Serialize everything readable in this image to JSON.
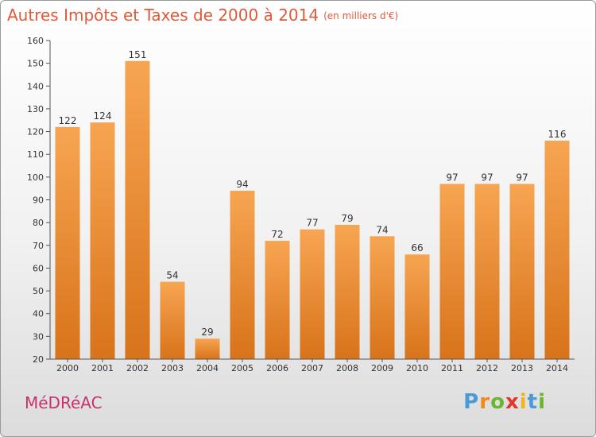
{
  "title": "Autres Impôts et Taxes de 2000 à 2014",
  "title_unit": "(en milliers d'€)",
  "commune": "MéDRéAC",
  "logo": {
    "letters": [
      "P",
      "r",
      "o",
      "x",
      "i",
      "t",
      "i"
    ],
    "icon": "proxiti-logo"
  },
  "colors": {
    "bar_top": "#f7a552",
    "bar_bottom": "#d8731a",
    "title": "#e05a3a",
    "commune": "#c8326b"
  },
  "chart_data": {
    "type": "bar",
    "categories": [
      "2000",
      "2001",
      "2002",
      "2003",
      "2004",
      "2005",
      "2006",
      "2007",
      "2008",
      "2009",
      "2010",
      "2011",
      "2012",
      "2013",
      "2014"
    ],
    "values": [
      122,
      124,
      151,
      54,
      29,
      94,
      72,
      77,
      79,
      74,
      66,
      97,
      97,
      97,
      116
    ],
    "title": "Autres Impôts et Taxes de 2000 à 2014",
    "subtitle": "(en milliers d'€)",
    "xlabel": "",
    "ylabel": "",
    "ylim": [
      20,
      160
    ],
    "yticks": [
      20,
      30,
      40,
      50,
      60,
      70,
      80,
      90,
      100,
      110,
      120,
      130,
      140,
      150,
      160
    ],
    "grid": false,
    "data_labels": true
  }
}
